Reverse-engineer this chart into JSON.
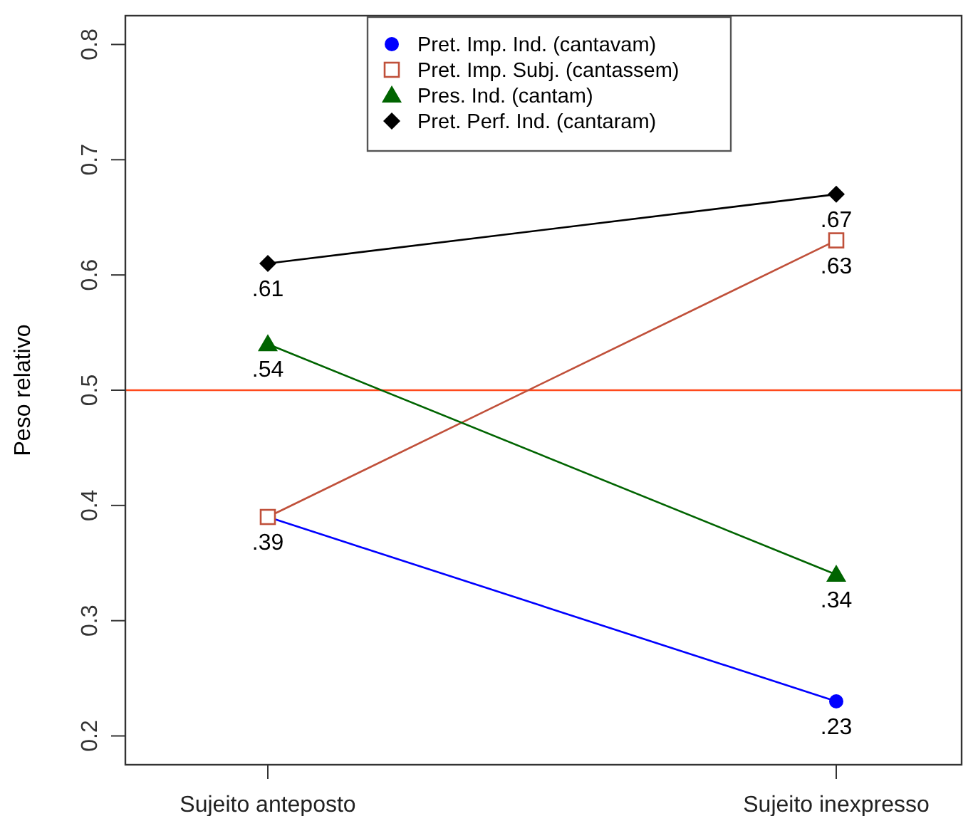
{
  "chart_data": {
    "type": "line",
    "ylabel": "Peso relativo",
    "categories": [
      "Sujeito anteposto",
      "Sujeito inexpresso"
    ],
    "ylim": [
      0.175,
      0.825
    ],
    "yticks": [
      0.2,
      0.3,
      0.4,
      0.5,
      0.6,
      0.7,
      0.8
    ],
    "grid": false,
    "legend": "top",
    "ref_lines": [
      {
        "axis": "y",
        "value": 0.5,
        "color": "#ff4a1c"
      }
    ],
    "series": [
      {
        "name": "Pret. Imp. Ind. (cantavam)",
        "color": "#0000ff",
        "marker": "circle",
        "values": [
          0.39,
          0.23
        ],
        "value_labels": [
          ".39",
          ".23"
        ]
      },
      {
        "name": "Pret. Imp. Subj. (cantassem)",
        "color": "#c0503a",
        "marker": "square",
        "values": [
          0.39,
          0.63
        ],
        "value_labels": [
          null,
          ".63"
        ]
      },
      {
        "name": "Pres. Ind. (cantam)",
        "color": "#006400",
        "marker": "triangle",
        "values": [
          0.54,
          0.34
        ],
        "value_labels": [
          ".54",
          ".34"
        ]
      },
      {
        "name": "Pret. Perf. Ind. (cantaram)",
        "color": "#000000",
        "marker": "diamond",
        "values": [
          0.61,
          0.67
        ],
        "value_labels": [
          ".61",
          ".67"
        ]
      }
    ]
  }
}
